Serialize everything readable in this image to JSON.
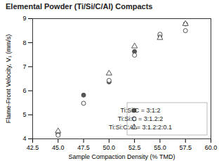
{
  "chart_data": {
    "type": "scatter",
    "title": "Elemental Powder (Ti/Si/C/Al) Compacts",
    "xlabel": "Sample Compaction Density (% TMD)",
    "ylabel": "Flame-Front Velocity, V₁ (mm/s)",
    "xlim": [
      42.5,
      60.0
    ],
    "ylim": [
      4.0,
      9.0
    ],
    "xticks": [
      42.5,
      {
        "value": 45,
        "label": "45.0"
      },
      47.5,
      {
        "value": 50,
        "label": "50.0"
      },
      52.5,
      {
        "value": 55,
        "label": "55.0"
      },
      57.5,
      {
        "value": 60,
        "label": "60.0"
      }
    ],
    "yticks": [
      4,
      5,
      6,
      7,
      8,
      9
    ],
    "grid": false,
    "legend": "lower right",
    "series": [
      {
        "name": "Ti:Si:C = 3:1:2",
        "marker": "circle",
        "color": "#555555",
        "x": [
          45.0,
          47.5,
          50.0,
          52.5,
          55.0,
          57.5
        ],
        "values": [
          4.2,
          5.82,
          6.37,
          7.63,
          8.3,
          8.78
        ]
      },
      {
        "name": "Ti:Si:C = 3:1.2:2",
        "marker": "circle-open",
        "color": "#555555",
        "x": [
          45.0,
          47.5,
          50.0,
          52.5,
          55.0,
          57.5
        ],
        "values": [
          4.15,
          5.48,
          6.43,
          7.48,
          8.35,
          8.5
        ]
      },
      {
        "name": "Ti:Si:C:Al = 3:1.2:2:0.1",
        "marker": "triangle-open",
        "color": "#555555",
        "x": [
          45.0,
          50.0,
          52.5,
          55.0,
          57.5
        ],
        "values": [
          4.32,
          6.72,
          7.85,
          8.2,
          8.78
        ]
      }
    ]
  }
}
